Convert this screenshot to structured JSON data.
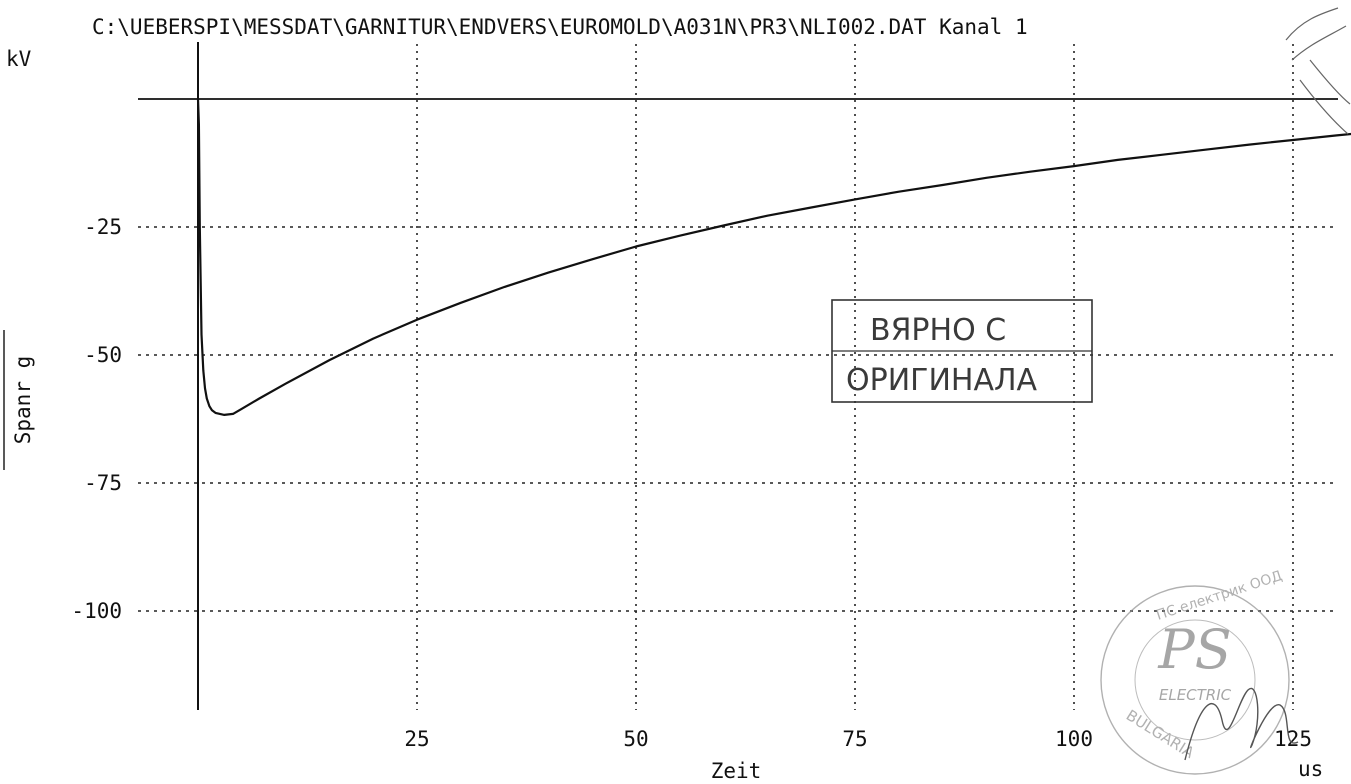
{
  "chart_data": {
    "type": "line",
    "title": "C:\\UEBERSPI\\MESSDAT\\GARNITUR\\ENDVERS\\EUROMOLD\\A031N\\PR3\\NLI002.DAT Kanal 1",
    "xlabel": "Zeit",
    "x_unit": "us",
    "ylabel": "Spanr g",
    "y_unit": "kV",
    "xlim": [
      0,
      133
    ],
    "ylim": [
      -120,
      5
    ],
    "x_ticks": [
      25,
      50,
      75,
      100,
      125
    ],
    "x_tick_labels": [
      "25",
      "50",
      "75",
      "100",
      "125"
    ],
    "y_ticks": [
      -25,
      -50,
      -75,
      -100
    ],
    "y_tick_labels": [
      "-25",
      "-50",
      "-75",
      "-100"
    ],
    "grid": true,
    "legend": "none",
    "series": [
      {
        "color": "#111111",
        "x": [
          0,
          0.1,
          0.2,
          0.4,
          0.6,
          0.8,
          1.0,
          1.3,
          1.6,
          2.0,
          3.0,
          4.0,
          5.0,
          7.0,
          10,
          15,
          20,
          25,
          30,
          35,
          40,
          45,
          50,
          55,
          60,
          65,
          70,
          75,
          80,
          85,
          90,
          95,
          100,
          105,
          110,
          115,
          120,
          125,
          130,
          133
        ],
        "y": [
          0,
          -5,
          -25,
          -46,
          -53,
          -56.5,
          -58.5,
          -60,
          -60.8,
          -61.3,
          -61.7,
          -61.5,
          -60.5,
          -58.5,
          -55.6,
          -51,
          -46.8,
          -43.1,
          -39.8,
          -36.7,
          -33.9,
          -31.3,
          -28.8,
          -26.7,
          -24.7,
          -22.8,
          -21.2,
          -19.6,
          -18.1,
          -16.8,
          -15.4,
          -14.2,
          -13.1,
          -11.9,
          -10.9,
          -9.9,
          -8.9,
          -8.0,
          -7.1,
          -6.6
        ]
      }
    ]
  },
  "stamp": {
    "line1": "ВЯРНО С",
    "line2": "ОРИГИНАЛА"
  },
  "seal": {
    "top": "ПС електрик ООД",
    "center": "PS",
    "sub": "ELECTRIC",
    "bottom": "BULGARIA"
  }
}
